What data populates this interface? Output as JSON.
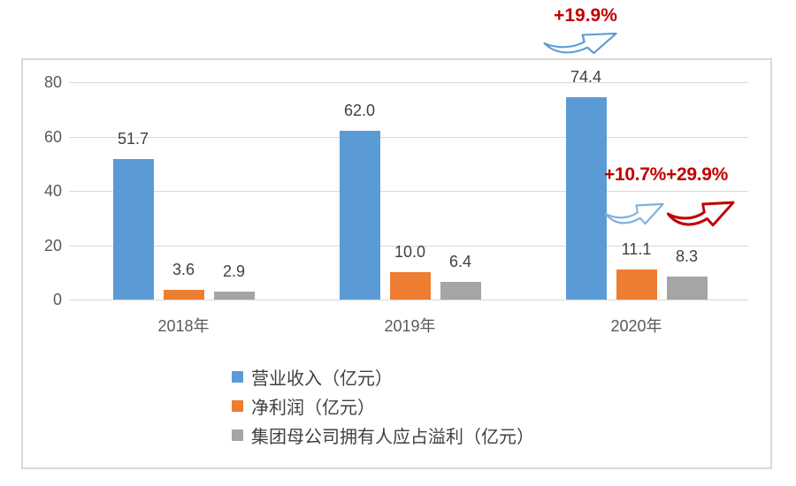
{
  "chart_data": {
    "type": "bar",
    "title": "",
    "categories": [
      "2018年",
      "2019年",
      "2020年"
    ],
    "series": [
      {
        "key": "revenue",
        "name": "营业收入（亿元）",
        "color": "#5B9BD5",
        "values": [
          51.7,
          62.0,
          74.4
        ],
        "labels": [
          "51.7",
          "62.0",
          "74.4"
        ]
      },
      {
        "key": "net-profit",
        "name": "净利润（亿元）",
        "color": "#ED7D31",
        "values": [
          3.6,
          10.0,
          11.1
        ],
        "labels": [
          "3.6",
          "10.0",
          "11.1"
        ]
      },
      {
        "key": "attributable-profit",
        "name": "集团母公司拥有人应占溢利（亿元）",
        "color": "#A5A5A5",
        "values": [
          2.9,
          6.4,
          8.3
        ],
        "labels": [
          "2.9",
          "6.4",
          "8.3"
        ]
      }
    ],
    "xlabel": "",
    "ylabel": "",
    "ylim": [
      0,
      80
    ],
    "yticks": [
      0,
      20,
      40,
      60,
      80
    ],
    "grid": true,
    "legend_position": "bottom-left",
    "annotations": [
      {
        "text": "+19.9%",
        "text_color": "#C00000",
        "arrow_color": "#5B9BD5",
        "location": "above-chart-over-2020-revenue-bar"
      },
      {
        "text": "+10.7%",
        "text_color": "#C00000",
        "arrow_color": "#7FB1DE",
        "location": "right-of-2020-revenue-bar"
      },
      {
        "text": "+29.9%",
        "text_color": "#C00000",
        "arrow_color": "#C00000",
        "location": "right-of-2020-net-profit-bar"
      }
    ],
    "gridline_color": "#D9D9D9",
    "frame_border_color": "#D9D9D9",
    "axis_label_color": "#595959",
    "data_label_color": "#404040",
    "annotation_color": "#C00000"
  }
}
